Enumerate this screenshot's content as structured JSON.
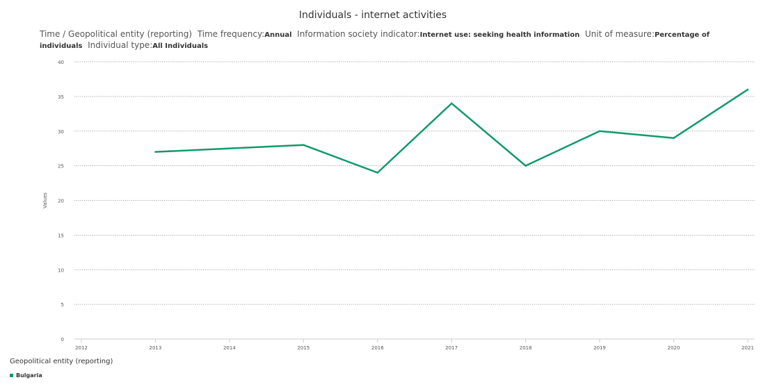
{
  "chart_data": {
    "type": "line",
    "title": "Individuals - internet activities",
    "subtitle": [
      {
        "label": "Time / Geopolitical entity (reporting)",
        "value": ""
      },
      {
        "label": "Time frequency:",
        "value": "Annual"
      },
      {
        "label": "Information society indicator:",
        "value": "Internet use: seeking health information"
      },
      {
        "label": "Unit of measure:",
        "value": "Percentage of individuals"
      },
      {
        "label": "Individual type:",
        "value": "All Individuals"
      }
    ],
    "ylabel": "Values",
    "xlabel": "",
    "ylim": [
      0,
      40
    ],
    "yticks": [
      0,
      5,
      10,
      15,
      20,
      25,
      30,
      35,
      40
    ],
    "x_ticks": [
      "2012",
      "2013",
      "2014",
      "2015",
      "2016",
      "2017",
      "2018",
      "2019",
      "2020",
      "2021"
    ],
    "grid": true,
    "legend_title": "Geopolitical entity (reporting)",
    "legend_position": "bottom-left",
    "series": [
      {
        "name": "Bulgaria",
        "color": "#0f9a6e",
        "points": [
          {
            "x": "2013",
            "y": 27
          },
          {
            "x": "2015",
            "y": 28
          },
          {
            "x": "2016",
            "y": 24
          },
          {
            "x": "2017",
            "y": 34
          },
          {
            "x": "2018",
            "y": 25
          },
          {
            "x": "2019",
            "y": 30
          },
          {
            "x": "2020",
            "y": 29
          },
          {
            "x": "2021",
            "y": 36
          }
        ]
      }
    ]
  }
}
